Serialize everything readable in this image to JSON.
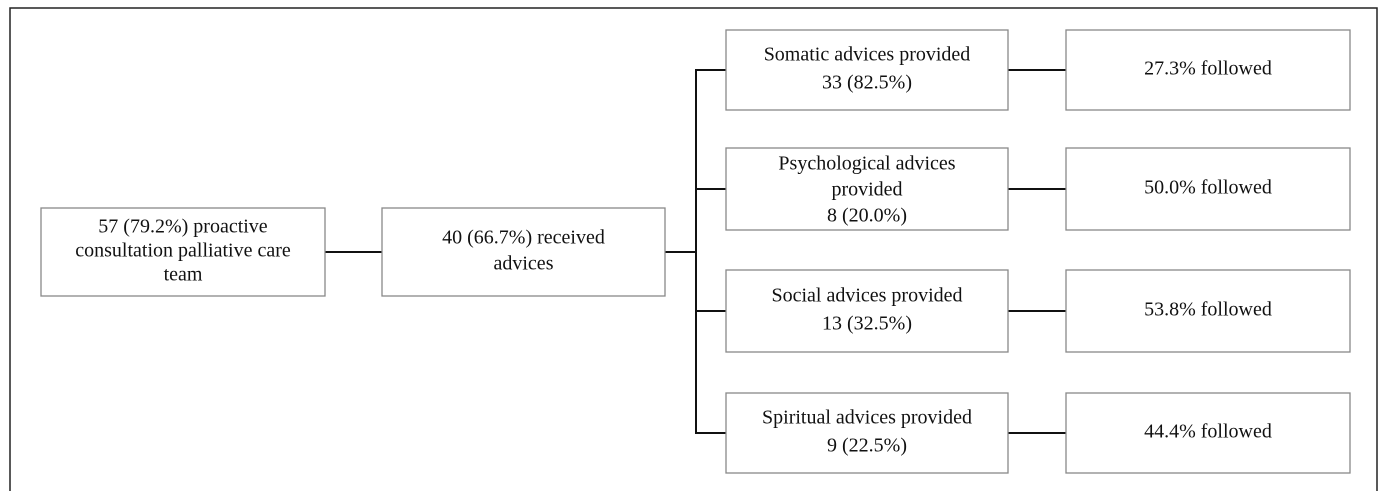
{
  "nodes": [
    {
      "lines": [
        "57 (79.2%) proactive",
        "consultation palliative care",
        "team"
      ]
    },
    {
      "lines": [
        "40 (66.7%) received",
        "advices"
      ]
    },
    {
      "lines": [
        "Somatic advices provided",
        "33 (82.5%)"
      ]
    },
    {
      "lines": [
        "Psychological advices",
        "provided",
        "8 (20.0%)"
      ]
    },
    {
      "lines": [
        "Social advices provided",
        "13 (32.5%)"
      ]
    },
    {
      "lines": [
        "Spiritual advices provided",
        "9 (22.5%)"
      ]
    },
    {
      "lines": [
        "27.3% followed"
      ]
    },
    {
      "lines": [
        "50.0% followed"
      ]
    },
    {
      "lines": [
        "53.8% followed"
      ]
    },
    {
      "lines": [
        "44.4% followed"
      ]
    }
  ]
}
